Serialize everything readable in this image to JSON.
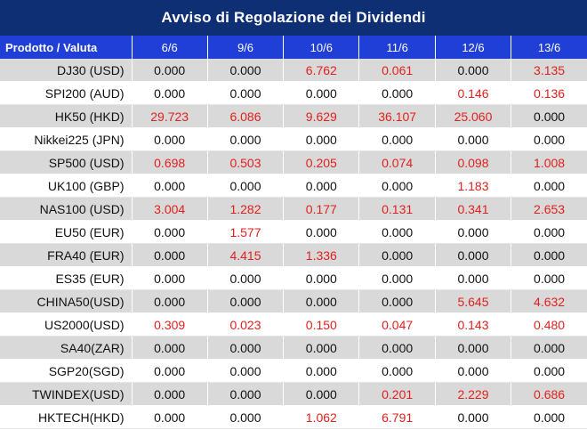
{
  "title": "Avviso di Regolazione dei Dividendi",
  "header": {
    "product_label": "Prodotto / Valuta",
    "dates": [
      "6/6",
      "9/6",
      "10/6",
      "11/6",
      "12/6",
      "13/6"
    ]
  },
  "rows": [
    {
      "product": "DJ30 (USD)",
      "values": [
        "0.000",
        "0.000",
        "6.762",
        "0.061",
        "0.000",
        "3.135"
      ]
    },
    {
      "product": "SPI200 (AUD)",
      "values": [
        "0.000",
        "0.000",
        "0.000",
        "0.000",
        "0.146",
        "0.136"
      ]
    },
    {
      "product": "HK50 (HKD)",
      "values": [
        "29.723",
        "6.086",
        "9.629",
        "36.107",
        "25.060",
        "0.000"
      ]
    },
    {
      "product": "Nikkei225 (JPN)",
      "values": [
        "0.000",
        "0.000",
        "0.000",
        "0.000",
        "0.000",
        "0.000"
      ]
    },
    {
      "product": "SP500 (USD)",
      "values": [
        "0.698",
        "0.503",
        "0.205",
        "0.074",
        "0.098",
        "1.008"
      ]
    },
    {
      "product": "UK100 (GBP)",
      "values": [
        "0.000",
        "0.000",
        "0.000",
        "0.000",
        "1.183",
        "0.000"
      ]
    },
    {
      "product": "NAS100 (USD)",
      "values": [
        "3.004",
        "1.282",
        "0.177",
        "0.131",
        "0.341",
        "2.653"
      ]
    },
    {
      "product": "EU50 (EUR)",
      "values": [
        "0.000",
        "1.577",
        "0.000",
        "0.000",
        "0.000",
        "0.000"
      ]
    },
    {
      "product": "FRA40 (EUR)",
      "values": [
        "0.000",
        "4.415",
        "1.336",
        "0.000",
        "0.000",
        "0.000"
      ]
    },
    {
      "product": "ES35 (EUR)",
      "values": [
        "0.000",
        "0.000",
        "0.000",
        "0.000",
        "0.000",
        "0.000"
      ]
    },
    {
      "product": "CHINA50(USD)",
      "values": [
        "0.000",
        "0.000",
        "0.000",
        "0.000",
        "5.645",
        "4.632"
      ]
    },
    {
      "product": "US2000(USD)",
      "values": [
        "0.309",
        "0.023",
        "0.150",
        "0.047",
        "0.143",
        "0.480"
      ]
    },
    {
      "product": "SA40(ZAR)",
      "values": [
        "0.000",
        "0.000",
        "0.000",
        "0.000",
        "0.000",
        "0.000"
      ]
    },
    {
      "product": "SGP20(SGD)",
      "values": [
        "0.000",
        "0.000",
        "0.000",
        "0.000",
        "0.000",
        "0.000"
      ]
    },
    {
      "product": "TWINDEX(USD)",
      "values": [
        "0.000",
        "0.000",
        "0.000",
        "0.201",
        "2.229",
        "0.686"
      ]
    },
    {
      "product": "HKTECH(HKD)",
      "values": [
        "0.000",
        "0.000",
        "1.062",
        "6.791",
        "0.000",
        "0.000"
      ]
    }
  ],
  "colors": {
    "title_bg": "#0e2f73",
    "header_bg": "#1f3fd6",
    "positive_value": "#e0211d",
    "zero_value": "#111111",
    "stripe": "#d9d9d9"
  }
}
